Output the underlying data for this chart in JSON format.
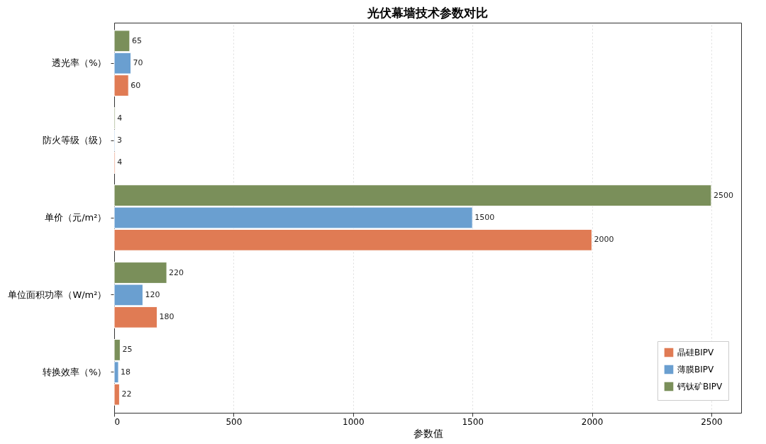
{
  "chart_data": {
    "type": "bar",
    "orientation": "horizontal",
    "title": "光伏幕墙技术参数对比",
    "xlabel": "参数值",
    "categories": [
      "透光率（%）",
      "防火等级（级）",
      "单价（元/m²）",
      "单位面积功率（W/m²）",
      "转换效率（%）"
    ],
    "series": [
      {
        "name": "晶硅BIPV",
        "color": "#e07b54",
        "values": [
          60,
          4,
          2000,
          180,
          22
        ]
      },
      {
        "name": "薄膜BIPV",
        "color": "#6a9fd0",
        "values": [
          70,
          3,
          1500,
          120,
          18
        ]
      },
      {
        "name": "钙钛矿BIPV",
        "color": "#7a8f5a",
        "values": [
          65,
          4,
          2500,
          220,
          25
        ]
      }
    ],
    "xlim": [
      0,
      2625
    ],
    "xticks": [
      0,
      500,
      1000,
      1500,
      2000,
      2500
    ],
    "grid": "x",
    "legend": "bottom right",
    "data_labels": true
  }
}
